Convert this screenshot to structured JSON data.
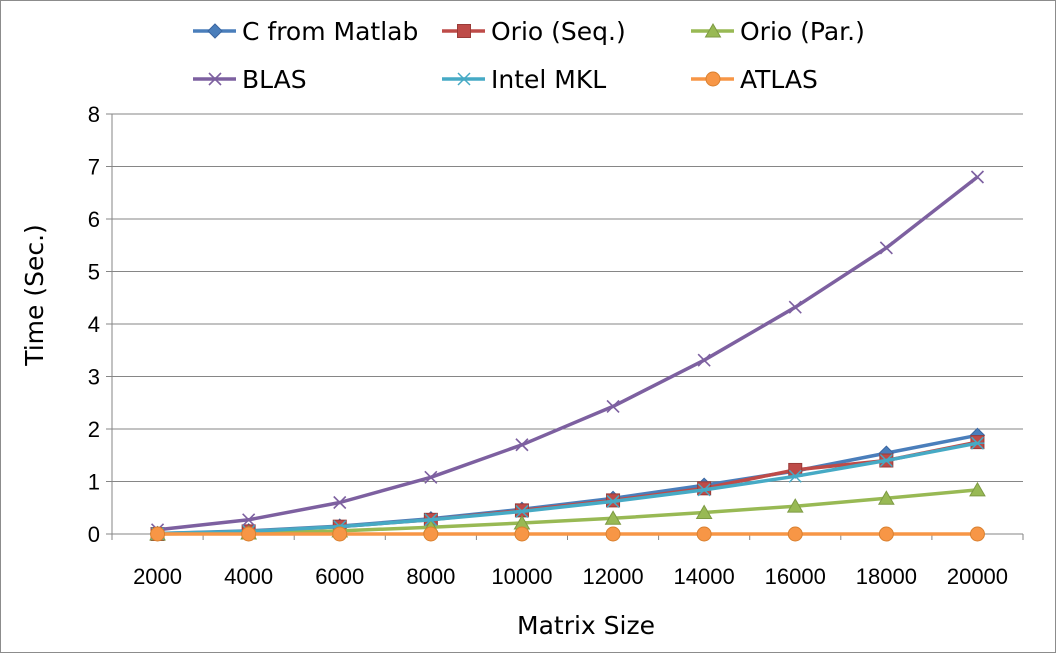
{
  "chart_data": {
    "type": "line",
    "title": "",
    "xlabel": "Matrix Size",
    "ylabel": "Time (Sec.)",
    "x": [
      2000,
      4000,
      6000,
      8000,
      10000,
      12000,
      14000,
      16000,
      18000,
      20000
    ],
    "x_tick_labels": [
      "2000",
      "4000",
      "6000",
      "8000",
      "10000",
      "12000",
      "14000",
      "16000",
      "18000",
      "20000"
    ],
    "ylim": [
      0,
      8
    ],
    "y_ticks": [
      0,
      1,
      2,
      3,
      4,
      5,
      6,
      7,
      8
    ],
    "grid": "horizontal",
    "legend_position": "top",
    "series": [
      {
        "name": "C from Matlab",
        "color": "#4a7ebb",
        "marker": "diamond",
        "values": [
          0.01,
          0.06,
          0.15,
          0.29,
          0.47,
          0.68,
          0.93,
          1.2,
          1.54,
          1.88
        ]
      },
      {
        "name": "Orio (Seq.)",
        "color": "#be4b48",
        "marker": "square",
        "values": [
          0.0,
          0.05,
          0.14,
          0.27,
          0.45,
          0.64,
          0.87,
          1.22,
          1.4,
          1.75
        ]
      },
      {
        "name": "Orio (Par.)",
        "color": "#98b954",
        "marker": "triangle",
        "values": [
          0.0,
          0.02,
          0.06,
          0.13,
          0.21,
          0.3,
          0.41,
          0.53,
          0.68,
          0.84
        ]
      },
      {
        "name": "BLAS",
        "color": "#7d60a0",
        "marker": "x",
        "values": [
          0.08,
          0.27,
          0.6,
          1.08,
          1.7,
          2.43,
          3.31,
          4.32,
          5.45,
          6.8
        ]
      },
      {
        "name": "Intel MKL",
        "color": "#46aac5",
        "marker": "asterisk",
        "values": [
          0.01,
          0.05,
          0.14,
          0.27,
          0.43,
          0.62,
          0.84,
          1.1,
          1.4,
          1.73
        ]
      },
      {
        "name": "ATLAS",
        "color": "#f79646",
        "marker": "circle",
        "values": [
          0.0,
          0.0,
          0.0,
          0.0,
          0.0,
          0.0,
          0.0,
          0.0,
          0.0,
          0.0
        ]
      }
    ]
  }
}
